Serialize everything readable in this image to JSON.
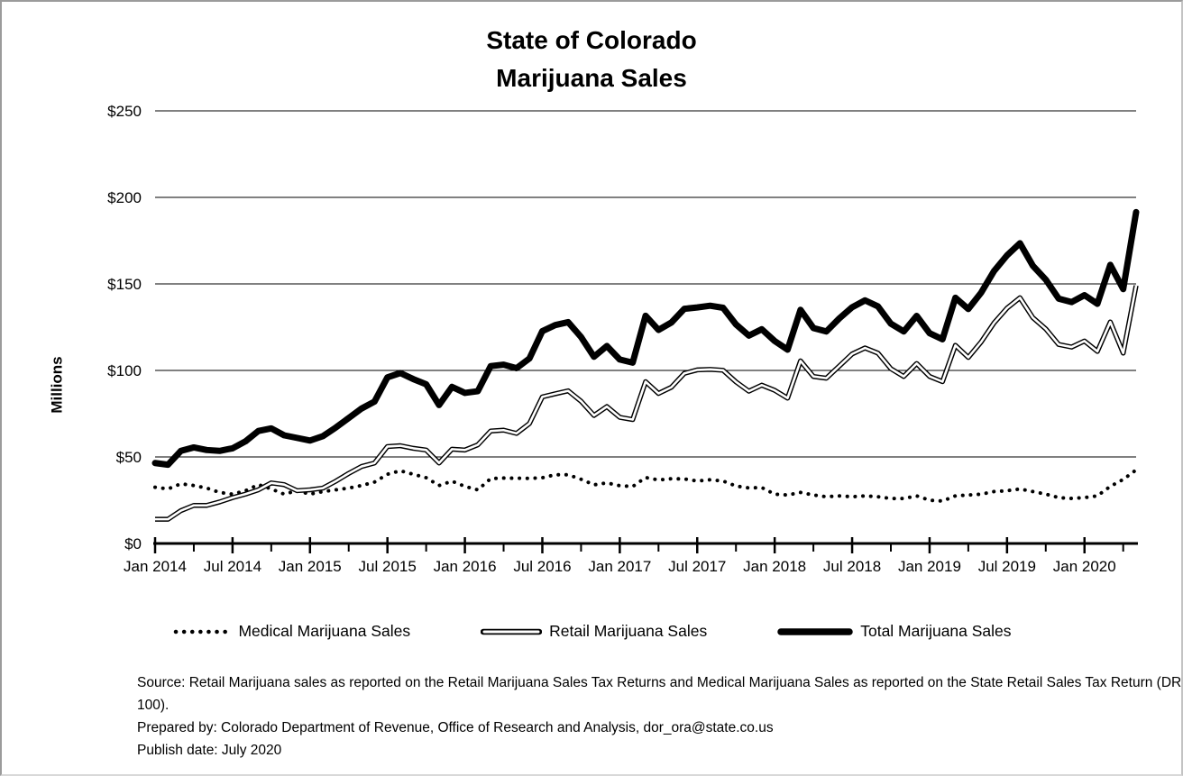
{
  "title": {
    "line1": "State of Colorado",
    "line2": "Marijuana Sales"
  },
  "y_axis": {
    "label": "Millions",
    "tick_labels": [
      "$0",
      "$50",
      "$100",
      "$150",
      "$200",
      "$250"
    ],
    "min": 0,
    "max": 250,
    "step": 50
  },
  "x_axis": {
    "tick_labels": [
      "Jan 2014",
      "Jul 2014",
      "Jan 2015",
      "Jul 2015",
      "Jan 2016",
      "Jul 2016",
      "Jan 2017",
      "Jul 2017",
      "Jan 2018",
      "Jul 2018",
      "Jan 2019",
      "Jul 2019",
      "Jan 2020"
    ]
  },
  "legend": {
    "items": [
      {
        "label": "Medical Marijuana Sales",
        "style": "dotted"
      },
      {
        "label": "Retail Marijuana Sales",
        "style": "double"
      },
      {
        "label": "Total Marijuana Sales",
        "style": "thick"
      }
    ]
  },
  "footer": {
    "source": "Source: Retail Marijuana sales as reported on the Retail Marijuana Sales Tax Returns and Medical Marijuana Sales as reported on the State Retail Sales Tax Return (DR 100).",
    "prepared_by": "Prepared by: Colorado Department of Revenue, Office of Research and Analysis, dor_ora@state.co.us",
    "publish_date": "Publish date: July 2020"
  },
  "colors": {
    "line": "#000000",
    "background": "#ffffff",
    "border": "#9b9b9b"
  },
  "chart_data": {
    "type": "line",
    "title": "State of Colorado Marijuana Sales",
    "ylabel": "Millions",
    "units": "USD millions",
    "ylim": [
      0,
      250
    ],
    "grid": "horizontal",
    "legend_position": "bottom",
    "x_range": {
      "start": "Jan 2014",
      "end": "May 2020",
      "interval": "monthly"
    },
    "months": [
      "Jan 2014",
      "Feb 2014",
      "Mar 2014",
      "Apr 2014",
      "May 2014",
      "Jun 2014",
      "Jul 2014",
      "Aug 2014",
      "Sep 2014",
      "Oct 2014",
      "Nov 2014",
      "Dec 2014",
      "Jan 2015",
      "Feb 2015",
      "Mar 2015",
      "Apr 2015",
      "May 2015",
      "Jun 2015",
      "Jul 2015",
      "Aug 2015",
      "Sep 2015",
      "Oct 2015",
      "Nov 2015",
      "Dec 2015",
      "Jan 2016",
      "Feb 2016",
      "Mar 2016",
      "Apr 2016",
      "May 2016",
      "Jun 2016",
      "Jul 2016",
      "Aug 2016",
      "Sep 2016",
      "Oct 2016",
      "Nov 2016",
      "Dec 2016",
      "Jan 2017",
      "Feb 2017",
      "Mar 2017",
      "Apr 2017",
      "May 2017",
      "Jun 2017",
      "Jul 2017",
      "Aug 2017",
      "Sep 2017",
      "Oct 2017",
      "Nov 2017",
      "Dec 2017",
      "Jan 2018",
      "Feb 2018",
      "Mar 2018",
      "Apr 2018",
      "May 2018",
      "Jun 2018",
      "Jul 2018",
      "Aug 2018",
      "Sep 2018",
      "Oct 2018",
      "Nov 2018",
      "Dec 2018",
      "Jan 2019",
      "Feb 2019",
      "Mar 2019",
      "Apr 2019",
      "May 2019",
      "Jun 2019",
      "Jul 2019",
      "Aug 2019",
      "Sep 2019",
      "Oct 2019",
      "Nov 2019",
      "Dec 2019",
      "Jan 2020",
      "Feb 2020",
      "Mar 2020",
      "Apr 2020",
      "May 2020"
    ],
    "series": [
      {
        "name": "Medical Marijuana Sales",
        "line_style": "dotted",
        "values": [
          32.5,
          31.5,
          34.5,
          33.5,
          32.0,
          29.5,
          28.5,
          30.5,
          34.0,
          31.5,
          28.5,
          30.5,
          28.5,
          30.0,
          31.0,
          32.0,
          33.5,
          35.5,
          40.0,
          42.0,
          40.0,
          38.0,
          33.5,
          36.0,
          33.0,
          31.0,
          37.5,
          37.8,
          37.7,
          37.6,
          38.0,
          39.7,
          39.7,
          37.1,
          33.9,
          35.0,
          33.4,
          32.9,
          38.1,
          36.7,
          37.4,
          37.3,
          36.1,
          36.8,
          36.1,
          33.2,
          32.1,
          32.3,
          28.5,
          28.0,
          29.5,
          28.0,
          27.0,
          27.5,
          27.0,
          27.5,
          27.0,
          26.0,
          26.0,
          27.5,
          25.0,
          24.5,
          27.5,
          28.0,
          28.5,
          30.0,
          30.5,
          31.5,
          30.0,
          28.5,
          26.5,
          26.0,
          26.5,
          27.5,
          33.0,
          37.0,
          42.5
        ]
      },
      {
        "name": "Retail Marijuana Sales",
        "line_style": "double",
        "values": [
          14.0,
          14.0,
          19.0,
          22.0,
          22.0,
          24.0,
          26.5,
          28.5,
          31.0,
          35.0,
          34.0,
          30.5,
          31.0,
          32.0,
          36.0,
          40.5,
          44.5,
          46.5,
          56.0,
          56.5,
          55.0,
          54.0,
          46.5,
          54.5,
          54.0,
          57.0,
          65.0,
          65.5,
          63.6,
          69.3,
          84.7,
          86.5,
          88.2,
          82.2,
          74.0,
          79.1,
          72.9,
          71.6,
          93.5,
          86.7,
          90.3,
          98.3,
          100.3,
          100.6,
          100.1,
          93.4,
          88.0,
          91.5,
          88.5,
          84.0,
          105.5,
          96.5,
          95.5,
          102.5,
          109.5,
          113.0,
          110.0,
          101.0,
          96.5,
          104.0,
          96.5,
          93.5,
          114.5,
          107.5,
          116.5,
          127.5,
          136.0,
          142.0,
          130.5,
          124.0,
          115.0,
          113.5,
          117.0,
          111.0,
          128.0,
          110.0,
          149.0
        ]
      },
      {
        "name": "Total Marijuana Sales",
        "line_style": "thick-solid",
        "values": [
          46.5,
          45.5,
          53.5,
          55.5,
          54.0,
          53.5,
          55.0,
          59.0,
          65.0,
          66.5,
          62.5,
          61.0,
          59.5,
          62.0,
          67.0,
          72.5,
          78.0,
          82.0,
          96.0,
          98.5,
          95.0,
          92.0,
          80.0,
          90.5,
          87.0,
          88.0,
          102.5,
          103.3,
          101.3,
          106.9,
          122.7,
          126.2,
          127.9,
          119.3,
          107.9,
          114.1,
          106.3,
          104.5,
          131.6,
          123.4,
          127.7,
          135.6,
          136.4,
          137.4,
          136.2,
          126.6,
          120.1,
          123.8,
          117.0,
          112.0,
          135.0,
          124.5,
          122.5,
          130.0,
          136.5,
          140.5,
          137.0,
          127.0,
          122.5,
          131.5,
          121.5,
          118.0,
          142.0,
          135.5,
          145.0,
          157.5,
          166.5,
          173.5,
          160.5,
          152.5,
          141.5,
          139.5,
          143.5,
          138.5,
          161.0,
          147.0,
          191.5
        ]
      }
    ]
  }
}
